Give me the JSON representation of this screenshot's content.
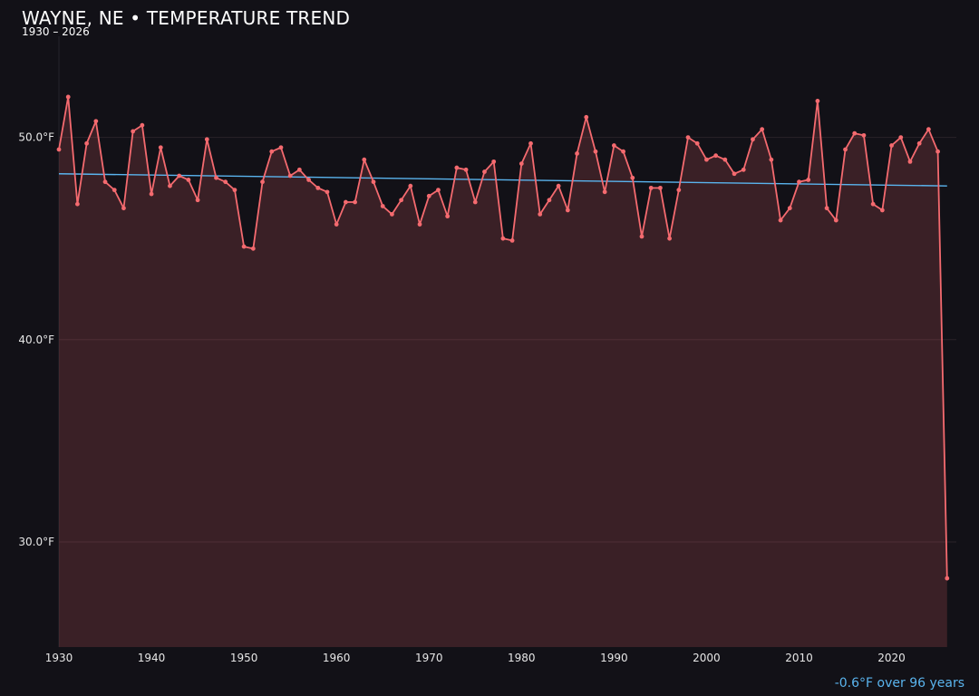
{
  "chart_data": {
    "type": "line",
    "title": "WAYNE, NE • TEMPERATURE TREND",
    "subtitle": "1930 – 2026",
    "annotation": "-0.6°F over 96 years",
    "xlim": [
      1930,
      2027
    ],
    "ylim": [
      24.8,
      55
    ],
    "x_ticks": [
      {
        "value": 1930,
        "label": "1930"
      },
      {
        "value": 1940,
        "label": "1940"
      },
      {
        "value": 1950,
        "label": "1950"
      },
      {
        "value": 1960,
        "label": "1960"
      },
      {
        "value": 1970,
        "label": "1970"
      },
      {
        "value": 1980,
        "label": "1980"
      },
      {
        "value": 1990,
        "label": "1990"
      },
      {
        "value": 2000,
        "label": "2000"
      },
      {
        "value": 2010,
        "label": "2010"
      },
      {
        "value": 2020,
        "label": "2020"
      }
    ],
    "y_ticks": [
      {
        "value": 30,
        "label": "30.0°F"
      },
      {
        "value": 40,
        "label": "40.0°F"
      },
      {
        "value": 50,
        "label": "50.0°F"
      }
    ],
    "grid": true,
    "colors": {
      "series": "#f46a6f",
      "area": "#f46a6f",
      "trend": "#5ab4ee",
      "background": "#121117",
      "grid": "#2a2229",
      "axis_text": "#e6e6e6"
    },
    "series": [
      {
        "x": [
          1930,
          1931,
          1932,
          1933,
          1934,
          1935,
          1936,
          1937,
          1938,
          1939,
          1940,
          1941,
          1942,
          1943,
          1944,
          1945,
          1946,
          1947,
          1948,
          1949,
          1950,
          1951,
          1952,
          1953,
          1954,
          1955,
          1956,
          1957,
          1958,
          1959,
          1960,
          1961,
          1962,
          1963,
          1964,
          1965,
          1966,
          1967,
          1968,
          1969,
          1970,
          1971,
          1972,
          1973,
          1974,
          1975,
          1976,
          1977,
          1978,
          1979,
          1980,
          1981,
          1982,
          1983,
          1984,
          1985,
          1986,
          1987,
          1988,
          1989,
          1990,
          1991,
          1992,
          1993,
          1994,
          1995,
          1996,
          1997,
          1998,
          1999,
          2000,
          2001,
          2002,
          2003,
          2004,
          2005,
          2006,
          2007,
          2008,
          2009,
          2010,
          2011,
          2012,
          2013,
          2014,
          2015,
          2016,
          2017,
          2018,
          2019,
          2020,
          2021,
          2022,
          2023,
          2024,
          2025,
          2026
        ],
        "values": [
          49.4,
          52.0,
          46.7,
          49.7,
          50.8,
          47.8,
          47.4,
          46.5,
          50.3,
          50.6,
          47.2,
          49.5,
          47.6,
          48.1,
          47.9,
          46.9,
          49.9,
          48.0,
          47.8,
          47.4,
          44.6,
          44.5,
          47.8,
          49.3,
          49.5,
          48.1,
          48.4,
          47.9,
          47.5,
          47.3,
          45.7,
          46.8,
          46.8,
          48.9,
          47.8,
          46.6,
          46.2,
          46.9,
          47.6,
          45.7,
          47.1,
          47.4,
          46.1,
          48.5,
          48.4,
          46.8,
          48.3,
          48.8,
          45.0,
          44.9,
          48.7,
          49.7,
          46.2,
          46.9,
          47.6,
          46.4,
          49.2,
          51.0,
          49.3,
          47.3,
          49.6,
          49.3,
          48.0,
          45.1,
          47.5,
          47.5,
          45.0,
          47.4,
          50.0,
          49.7,
          48.9,
          49.1,
          48.9,
          48.2,
          48.4,
          49.9,
          50.4,
          48.9,
          45.9,
          46.5,
          47.8,
          47.9,
          51.8,
          46.5,
          45.9,
          49.4,
          50.2,
          50.1,
          46.7,
          46.4,
          49.6,
          50.0,
          48.8,
          49.7,
          50.4,
          49.3,
          28.2
        ]
      }
    ],
    "trend": {
      "x": [
        1930,
        2026
      ],
      "values": [
        48.2,
        47.6
      ]
    }
  }
}
